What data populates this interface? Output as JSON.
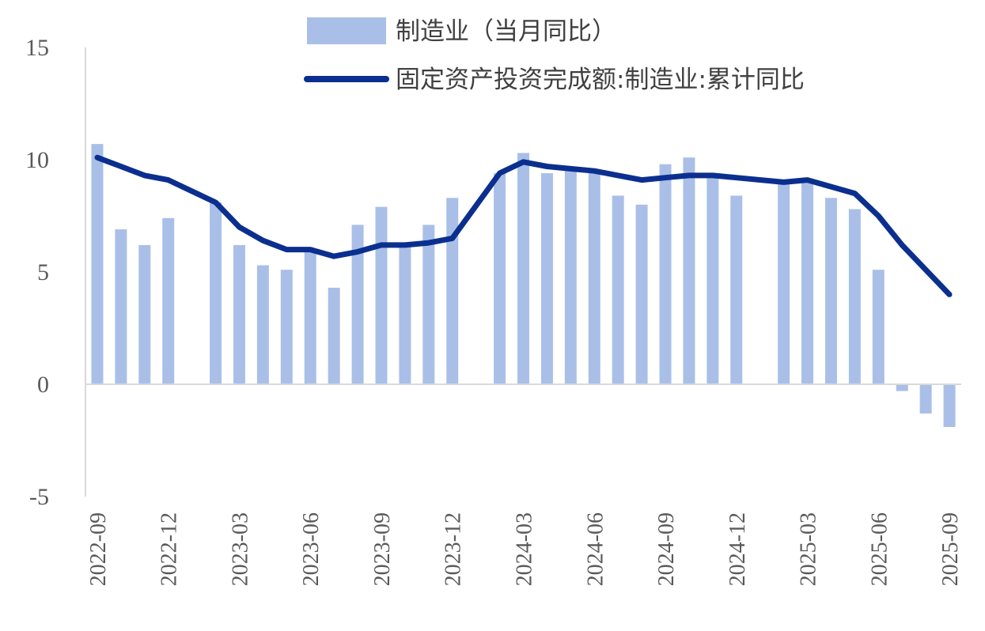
{
  "colors": {
    "bar": "#a9bfe8",
    "line": "#0b2f8f",
    "axis": "#d9d9d9",
    "text": "#595959"
  },
  "legend": [
    {
      "type": "bar",
      "label": "制造业（当月同比）"
    },
    {
      "type": "line",
      "label": "固定资产投资完成额:制造业:累计同比"
    }
  ],
  "chart_data": {
    "type": "bar",
    "ylim": [
      -5,
      15
    ],
    "yticks": [
      -5,
      0,
      5,
      10,
      15
    ],
    "x": [
      "2022-09",
      "2022-10",
      "2022-11",
      "2022-12",
      "2023-01",
      "2023-02",
      "2023-03",
      "2023-04",
      "2023-05",
      "2023-06",
      "2023-07",
      "2023-08",
      "2023-09",
      "2023-10",
      "2023-11",
      "2023-12",
      "2024-01",
      "2024-02",
      "2024-03",
      "2024-04",
      "2024-05",
      "2024-06",
      "2024-07",
      "2024-08",
      "2024-09",
      "2024-10",
      "2024-11",
      "2024-12",
      "2025-01",
      "2025-02",
      "2025-03",
      "2025-04",
      "2025-05",
      "2025-06",
      "2025-07",
      "2025-08",
      "2025-09"
    ],
    "xtick_labels": [
      "2022-09",
      "2022-12",
      "2023-03",
      "2023-06",
      "2023-09",
      "2023-12",
      "2024-03",
      "2024-06",
      "2024-09",
      "2024-12",
      "2025-03",
      "2025-06",
      "2025-09"
    ],
    "series": [
      {
        "name": "制造业（当月同比）",
        "kind": "bar",
        "values": [
          10.7,
          6.9,
          6.2,
          7.4,
          null,
          8.1,
          6.2,
          5.3,
          5.1,
          6.0,
          4.3,
          7.1,
          7.9,
          6.3,
          7.1,
          8.3,
          null,
          9.4,
          10.3,
          9.4,
          9.6,
          9.5,
          8.4,
          8.0,
          9.8,
          10.1,
          9.3,
          8.4,
          null,
          9.0,
          9.1,
          8.3,
          7.8,
          5.1,
          -0.3,
          -1.3,
          -1.9
        ]
      },
      {
        "name": "固定资产投资完成额:制造业:累计同比",
        "kind": "line",
        "values": [
          10.1,
          9.7,
          9.3,
          9.1,
          8.6,
          8.1,
          7.0,
          6.4,
          6.0,
          6.0,
          5.7,
          5.9,
          6.2,
          6.2,
          6.3,
          6.5,
          null,
          9.4,
          9.9,
          9.7,
          9.6,
          9.5,
          9.3,
          9.1,
          9.2,
          9.3,
          9.3,
          9.2,
          null,
          9.0,
          9.1,
          8.8,
          8.5,
          7.5,
          6.2,
          5.1,
          4.0
        ]
      }
    ]
  }
}
